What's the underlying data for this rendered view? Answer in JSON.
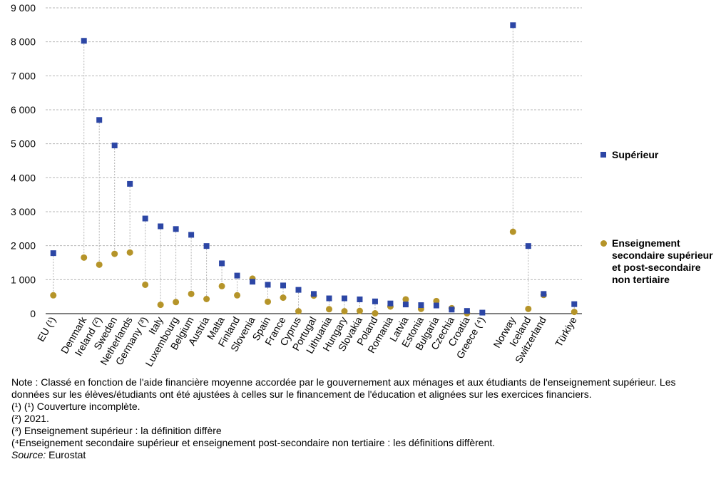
{
  "chart_data": {
    "type": "scatter",
    "ylim": [
      0,
      9000
    ],
    "yticks": [
      0,
      1000,
      2000,
      3000,
      4000,
      5000,
      6000,
      7000,
      8000,
      9000
    ],
    "ytick_labels": [
      "0",
      "1 000",
      "2 000",
      "3 000",
      "4 000",
      "5 000",
      "6 000",
      "7 000",
      "8 000",
      "9 000"
    ],
    "grid": true,
    "legend_position": "right",
    "categories": [
      "EU (¹)",
      "",
      "Denmark",
      "Ireland (²)",
      "Sweden",
      "Netherlands",
      "Germany (³)",
      "Italy",
      "Luxembourg",
      "Belgium",
      "Austria",
      "Malta",
      "Finland",
      "Slovenia",
      "Spain",
      "France",
      "Cyprus",
      "Portugal",
      "Lithuania",
      "Hungary",
      "Slovakia",
      "Poland",
      "Romania",
      "Latvia",
      "Estonia",
      "Bulgaria",
      "Czechia",
      "Croatia",
      "Greece (⁴)",
      "",
      "Norway",
      "Iceland",
      "Switzerland",
      "",
      "Türkiye"
    ],
    "series": [
      {
        "name": "Supérieur",
        "color": "#2c46a5",
        "marker": "square",
        "values": [
          1780,
          null,
          8030,
          5700,
          4950,
          3820,
          2800,
          2570,
          2490,
          2320,
          1990,
          1480,
          1120,
          940,
          850,
          830,
          700,
          580,
          450,
          450,
          420,
          360,
          300,
          270,
          250,
          240,
          120,
          80,
          30,
          null,
          8490,
          1990,
          580,
          null,
          280
        ]
      },
      {
        "name": "Enseignement secondaire supérieur et post-secondaire non tertiaire",
        "color": "#b59429",
        "marker": "circle",
        "values": [
          540,
          null,
          1650,
          1440,
          1760,
          1800,
          850,
          260,
          340,
          580,
          430,
          810,
          540,
          1030,
          350,
          470,
          70,
          530,
          130,
          70,
          80,
          10,
          210,
          420,
          140,
          370,
          160,
          10,
          null,
          null,
          2410,
          140,
          550,
          null,
          50
        ]
      }
    ]
  },
  "legend": {
    "items": [
      {
        "label": "Supérieur"
      },
      {
        "label": "Enseignement secondaire supérieur et post-secondaire non tertiaire"
      }
    ]
  },
  "notes": {
    "note": "Note : Classé en fonction de l'aide financière moyenne accordée par le gouvernement aux ménages et aux étudiants de l'enseignement supérieur. Les données sur les élèves/étudiants ont été ajustées à celles sur le financement de l'éducation et alignées sur les exercices financiers.",
    "fn1": "(¹) (¹) Couverture incomplète.",
    "fn2": "(²) 2021.",
    "fn3": "(³) Enseignement supérieur : la définition diffère",
    "fn4": "(⁴Enseignement secondaire supérieur et enseignement post-secondaire non tertiaire : les définitions diffèrent.",
    "source_label": "Source:",
    "source_value": " Eurostat"
  }
}
